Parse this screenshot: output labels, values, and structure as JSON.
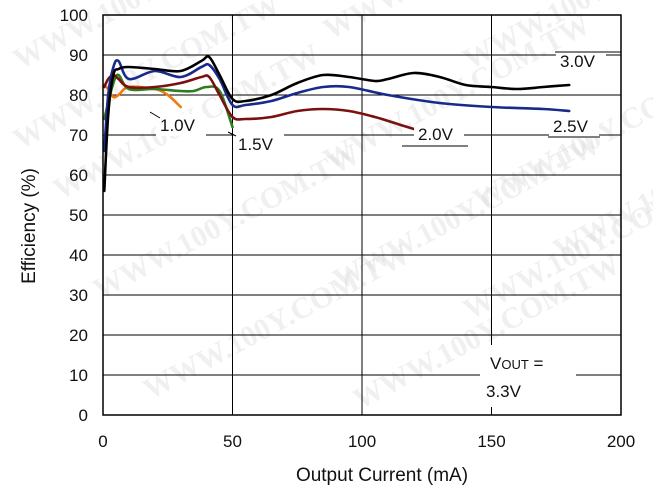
{
  "chart_data": {
    "type": "line",
    "xlabel": "Output Current (mA)",
    "ylabel": "Efficiency (%)",
    "xlim": [
      0,
      200
    ],
    "ylim": [
      0,
      100
    ],
    "xticks": [
      "0",
      "50",
      "100",
      "150",
      "200"
    ],
    "yticks": [
      "0",
      "10",
      "20",
      "30",
      "40",
      "50",
      "60",
      "70",
      "80",
      "90",
      "100"
    ],
    "grid": true,
    "series": [
      {
        "name": "3.0V",
        "color": "#000000",
        "x": [
          0.5,
          2,
          4,
          6,
          10,
          20,
          30,
          38,
          41,
          45,
          50,
          55,
          65,
          75,
          85,
          95,
          105,
          110,
          120,
          130,
          140,
          150,
          160,
          170,
          180
        ],
        "y": [
          56,
          75,
          85,
          86.5,
          87,
          86.5,
          86,
          88.5,
          89.5,
          85,
          79,
          78.5,
          80,
          83,
          85,
          84.5,
          83.5,
          84,
          85.5,
          84.5,
          82.5,
          82,
          81.5,
          82,
          82.5
        ]
      },
      {
        "name": "2.5V",
        "color": "#1a2a8c",
        "x": [
          0.5,
          2,
          4,
          6,
          10,
          20,
          30,
          38,
          41,
          45,
          50,
          55,
          65,
          75,
          85,
          95,
          110,
          130,
          150,
          170,
          180
        ],
        "y": [
          66,
          80,
          87,
          88.5,
          84,
          86,
          84.5,
          87,
          87.5,
          84,
          77.5,
          77.5,
          78.5,
          80.5,
          82,
          82,
          80,
          78,
          77,
          76.5,
          76
        ]
      },
      {
        "name": "2.0V",
        "color": "#7a1010",
        "x": [
          0.5,
          2,
          4,
          6,
          10,
          20,
          30,
          38,
          41,
          45,
          50,
          55,
          65,
          75,
          85,
          95,
          105,
          115,
          120
        ],
        "y": [
          82,
          84,
          85,
          84,
          82,
          82,
          83,
          84.5,
          84.5,
          80,
          74.5,
          74,
          74.5,
          76,
          76.5,
          76,
          74.5,
          72.5,
          71.5
        ]
      },
      {
        "name": "1.5V",
        "color": "#2e7d1e",
        "x": [
          0.5,
          2,
          4,
          6,
          10,
          20,
          30,
          35,
          40,
          45,
          50
        ],
        "y": [
          74,
          78,
          83,
          85,
          81.5,
          81.5,
          81,
          81,
          82,
          81,
          72
        ]
      },
      {
        "name": "1.0V",
        "color": "#f07a10",
        "x": [
          0.5,
          2,
          4,
          6,
          10,
          20,
          25,
          30
        ],
        "y": [
          82.5,
          81.5,
          79.5,
          80,
          82,
          81.5,
          80,
          77
        ]
      }
    ],
    "annotation": {
      "prefix": "V",
      "subscript": "OUT",
      "suffix": " =",
      "value": "3.3V"
    }
  },
  "watermark": "WWW.100Y.COM.TW"
}
